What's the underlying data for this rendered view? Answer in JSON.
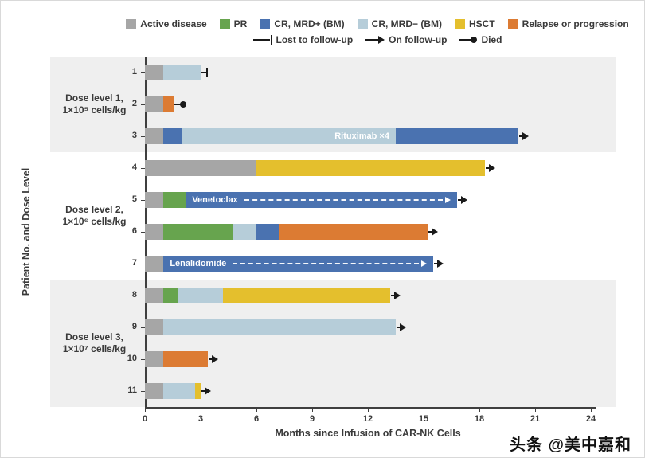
{
  "chart_data": {
    "type": "bar",
    "orientation": "horizontal-swimmer",
    "title": "",
    "xlabel": "Months since Infusion of CAR-NK Cells",
    "ylabel": "Patient No. and Dose Level",
    "xlim": [
      0,
      24
    ],
    "xticks": [
      0,
      3,
      6,
      9,
      12,
      15,
      18,
      21,
      24
    ],
    "grid": false,
    "states": [
      {
        "key": "active",
        "label": "Active disease",
        "color": "#a6a6a6"
      },
      {
        "key": "pr",
        "label": "PR",
        "color": "#67a44e"
      },
      {
        "key": "crpos",
        "label": "CR, MRD+ (BM)",
        "color": "#4a72b0"
      },
      {
        "key": "crneg",
        "label": "CR, MRD− (BM)",
        "color": "#b6cdd9"
      },
      {
        "key": "hsct",
        "label": "HSCT",
        "color": "#e4bf2d"
      },
      {
        "key": "relapse",
        "label": "Relapse or progression",
        "color": "#dc7b33"
      }
    ],
    "markers": [
      {
        "type": "lost",
        "label": "Lost to follow-up"
      },
      {
        "type": "arrow",
        "label": "On follow-up"
      },
      {
        "type": "died",
        "label": "Died"
      }
    ],
    "groups": [
      {
        "line1": "Dose level 1,",
        "line2": "1×10⁵ cells/kg",
        "shaded": true,
        "patients": [
          {
            "id": "1",
            "segments": [
              {
                "state": "active",
                "start": 0,
                "end": 1
              },
              {
                "state": "crneg",
                "start": 1,
                "end": 3
              }
            ],
            "outcome": "lost",
            "marker_end": 3.4
          },
          {
            "id": "2",
            "segments": [
              {
                "state": "active",
                "start": 0,
                "end": 1
              },
              {
                "state": "relapse",
                "start": 1,
                "end": 1.6
              }
            ],
            "outcome": "died",
            "marker_end": 2.0
          },
          {
            "id": "3",
            "segments": [
              {
                "state": "active",
                "start": 0,
                "end": 1
              },
              {
                "state": "crpos",
                "start": 1,
                "end": 2
              },
              {
                "state": "crneg",
                "start": 2,
                "end": 13.5,
                "label": "Rituximab ×4",
                "label_align": "right"
              },
              {
                "state": "crpos",
                "start": 13.5,
                "end": 20.1
              }
            ],
            "outcome": "arrow"
          }
        ]
      },
      {
        "line1": "Dose level 2,",
        "line2": "1×10⁶ cells/kg",
        "shaded": false,
        "patients": [
          {
            "id": "4",
            "segments": [
              {
                "state": "active",
                "start": 0,
                "end": 6
              },
              {
                "state": "hsct",
                "start": 6,
                "end": 18.3
              }
            ],
            "outcome": "arrow"
          },
          {
            "id": "5",
            "segments": [
              {
                "state": "active",
                "start": 0,
                "end": 1
              },
              {
                "state": "pr",
                "start": 1,
                "end": 2.2
              },
              {
                "state": "crpos",
                "start": 2.2,
                "end": 16.8,
                "label": "Venetoclax",
                "dashed_arrow": true
              }
            ],
            "outcome": "arrow"
          },
          {
            "id": "6",
            "segments": [
              {
                "state": "active",
                "start": 0,
                "end": 1
              },
              {
                "state": "pr",
                "start": 1,
                "end": 4.7
              },
              {
                "state": "crneg",
                "start": 4.7,
                "end": 6
              },
              {
                "state": "crpos",
                "start": 6,
                "end": 7.2
              },
              {
                "state": "relapse",
                "start": 7.2,
                "end": 15.2
              }
            ],
            "outcome": "arrow"
          },
          {
            "id": "7",
            "segments": [
              {
                "state": "active",
                "start": 0,
                "end": 1
              },
              {
                "state": "crpos",
                "start": 1,
                "end": 15.5,
                "label": "Lenalidomide",
                "dashed_arrow": true
              }
            ],
            "outcome": "arrow"
          }
        ]
      },
      {
        "line1": "Dose level 3,",
        "line2": "1×10⁷ cells/kg",
        "shaded": true,
        "patients": [
          {
            "id": "8",
            "segments": [
              {
                "state": "active",
                "start": 0,
                "end": 1
              },
              {
                "state": "pr",
                "start": 1,
                "end": 1.8
              },
              {
                "state": "crneg",
                "start": 1.8,
                "end": 4.2
              },
              {
                "state": "hsct",
                "start": 4.2,
                "end": 13.2
              }
            ],
            "outcome": "arrow"
          },
          {
            "id": "9",
            "segments": [
              {
                "state": "active",
                "start": 0,
                "end": 1
              },
              {
                "state": "crneg",
                "start": 1,
                "end": 13.5
              }
            ],
            "outcome": "arrow"
          },
          {
            "id": "10",
            "segments": [
              {
                "state": "active",
                "start": 0,
                "end": 1
              },
              {
                "state": "relapse",
                "start": 1,
                "end": 3.4
              }
            ],
            "outcome": "arrow"
          },
          {
            "id": "11",
            "segments": [
              {
                "state": "active",
                "start": 0,
                "end": 1
              },
              {
                "state": "crneg",
                "start": 1,
                "end": 2.7
              },
              {
                "state": "hsct",
                "start": 2.7,
                "end": 3.0
              }
            ],
            "outcome": "arrow"
          }
        ]
      }
    ],
    "band_shade_color": "#efefef",
    "marker_color": "#1a1a1a"
  },
  "watermark": "头条 @美中嘉和"
}
